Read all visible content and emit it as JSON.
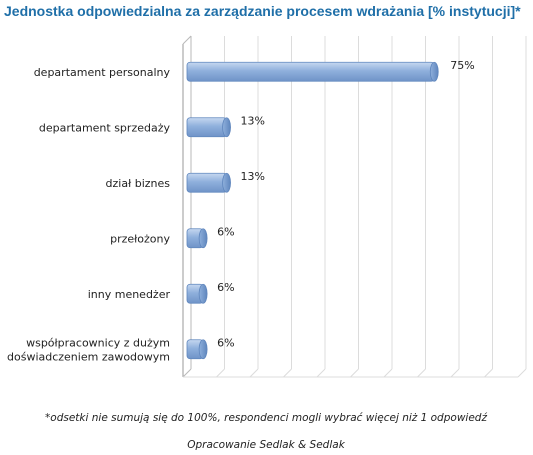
{
  "chart_data": {
    "type": "bar",
    "orientation": "horizontal",
    "title": "Jednostka odpowiedzialna za zarządzanie procesem wdrażania [% instytucji]*",
    "categories": [
      [
        "departament personalny"
      ],
      [
        "departament sprzedaży"
      ],
      [
        "dział biznes"
      ],
      [
        "przełożony"
      ],
      [
        "inny menedżer"
      ],
      [
        "współpracownicy z dużym",
        "doświadczeniem zawodowym"
      ]
    ],
    "values": [
      75,
      13,
      13,
      6,
      6,
      6
    ],
    "value_labels": [
      "75%",
      "13%",
      "13%",
      "6%",
      "6%",
      "6%"
    ],
    "xlim": [
      0,
      100
    ],
    "grid": true,
    "legend": "none",
    "bar_color": "#8fb0dc",
    "bar_stroke": "#5f86bd",
    "footnote": "*odsetki  nie sumują się do 100%, respondenci mogli wybrać więcej  niż 1 odpowiedź",
    "source": "Opracowanie Sedlak & Sedlak"
  }
}
